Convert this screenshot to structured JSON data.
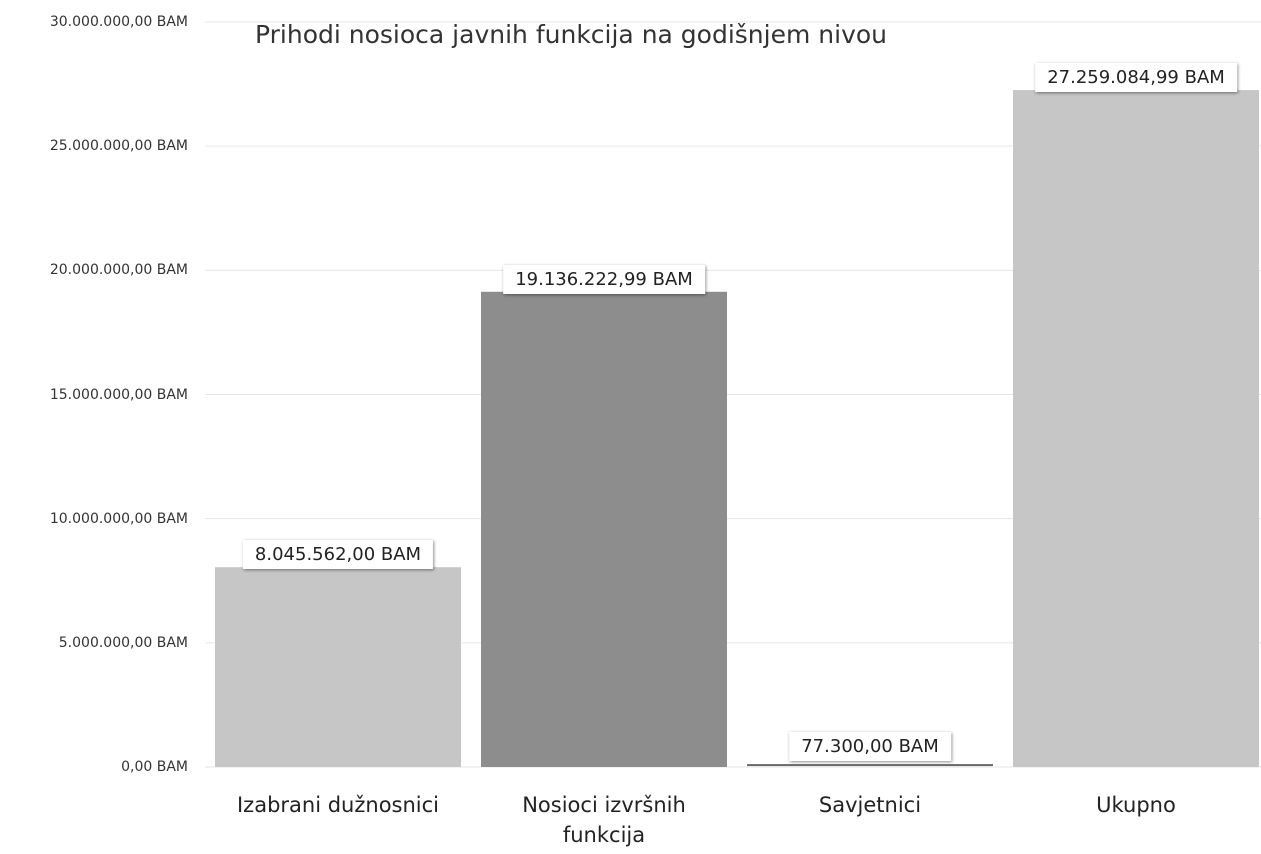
{
  "chart_data": {
    "type": "bar",
    "title": "Prihodi nosioca javnih funkcija na godišnjem nivou",
    "categories": [
      "Izabrani dužnosnici",
      "Nosioci izvršnih funkcija",
      "Savjetnici",
      "Ukupno"
    ],
    "values": [
      8045562.0,
      19136222.99,
      77300.0,
      27259084.99
    ],
    "value_labels": [
      "8.045.562,00 BAM",
      "19.136.222,99 BAM",
      "77.300,00 BAM",
      "27.259.084,99 BAM"
    ],
    "colors": [
      "#c6c6c6",
      "#8d8d8d",
      "#6a6a6a",
      "#c6c6c6"
    ],
    "ylim": [
      0,
      30000000
    ],
    "yticks": [
      {
        "value": 0,
        "label": "0,00 BAM"
      },
      {
        "value": 5000000,
        "label": "5.000.000,00 BAM"
      },
      {
        "value": 10000000,
        "label": "10.000.000,00 BAM"
      },
      {
        "value": 15000000,
        "label": "15.000.000,00 BAM"
      },
      {
        "value": 20000000,
        "label": "20.000.000,00 BAM"
      },
      {
        "value": 25000000,
        "label": "25.000.000,00 BAM"
      },
      {
        "value": 30000000,
        "label": "30.000.000,00 BAM"
      }
    ],
    "grid": true
  }
}
